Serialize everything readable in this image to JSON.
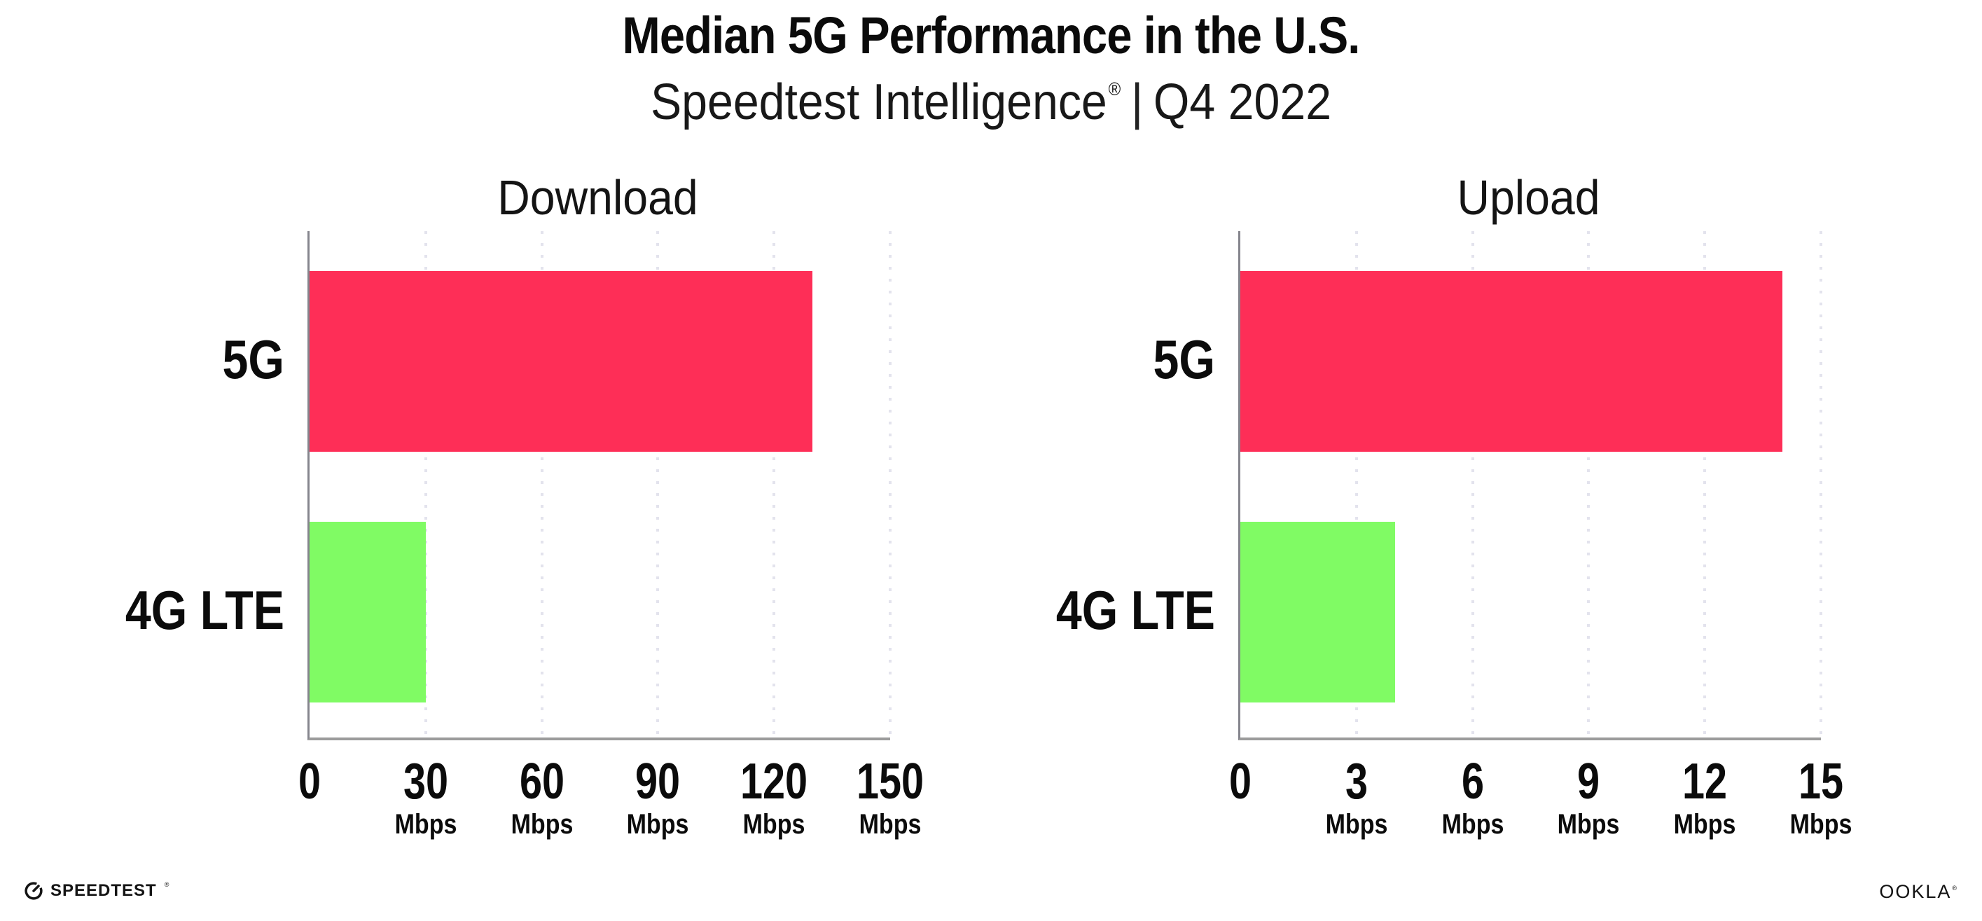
{
  "header": {
    "title": "Median 5G Performance in the U.S.",
    "subtitle": {
      "product": "Speedtest Intelligence",
      "registered_mark": "®",
      "separator": "|",
      "period": "Q4 2022"
    }
  },
  "chart_data": [
    {
      "type": "bar",
      "orientation": "horizontal",
      "title": "Download",
      "categories": [
        "5G",
        "4G LTE"
      ],
      "values": [
        130,
        30
      ],
      "unit": "Mbps",
      "xlim": [
        0,
        150
      ],
      "xticks": [
        0,
        30,
        60,
        90,
        120,
        150
      ],
      "grid": "vertical-dotted",
      "legend": "none",
      "bar_colors": [
        "#FE2E57",
        "#80FB64"
      ]
    },
    {
      "type": "bar",
      "orientation": "horizontal",
      "title": "Upload",
      "categories": [
        "5G",
        "4G LTE"
      ],
      "values": [
        14,
        4
      ],
      "unit": "Mbps",
      "xlim": [
        0,
        15
      ],
      "xticks": [
        0,
        3,
        6,
        9,
        12,
        15
      ],
      "grid": "vertical-dotted",
      "legend": "none",
      "bar_colors": [
        "#FE2E57",
        "#80FB64"
      ]
    }
  ],
  "footer": {
    "speedtest_logo_text": "SPEEDTEST",
    "speedtest_registered_mark": "®",
    "ookla_logo_text": "OOKLA",
    "ookla_registered_mark": "®"
  },
  "colors": {
    "bar_5g": "#FE2E57",
    "bar_4g_lte": "#80FB64",
    "axis_line": "#9B9B9B",
    "gridline": "#E3E3ED",
    "text": "#0B0B0B"
  }
}
